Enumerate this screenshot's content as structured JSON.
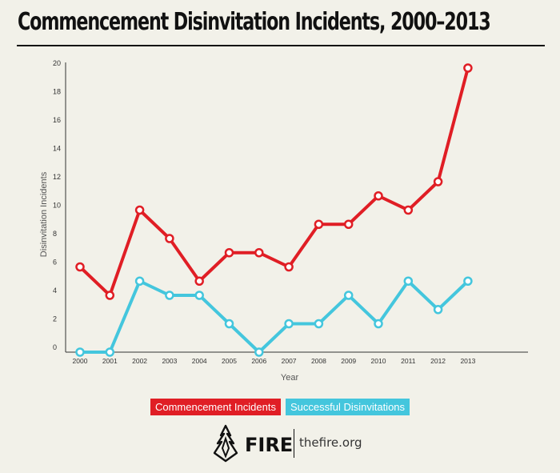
{
  "colors": {
    "commencement": "#e01e25",
    "successful": "#44c6dd",
    "axis": "#333333",
    "background": "#f2f1e9"
  },
  "chart_data": {
    "type": "line",
    "title": "Commencement Disinvitation Incidents, 2000–2013",
    "xlabel": "Year",
    "ylabel": "Disinvitation Incidents",
    "categories": [
      "2000",
      "2001",
      "2002",
      "2003",
      "2004",
      "2005",
      "2006",
      "2007",
      "2008",
      "2009",
      "2010",
      "2011",
      "2012",
      "2013"
    ],
    "yticks": [
      0,
      2,
      4,
      6,
      8,
      10,
      12,
      14,
      16,
      18,
      20
    ],
    "ylim": [
      0,
      20
    ],
    "series": [
      {
        "name": "Commencement Incidents",
        "values": [
          6,
          4,
          10,
          8,
          5,
          7,
          7,
          6,
          9,
          9,
          11,
          10,
          12,
          20
        ]
      },
      {
        "name": "Successful Disinvitations",
        "values": [
          0,
          0,
          5,
          4,
          4,
          2,
          0,
          2,
          2,
          4,
          2,
          5,
          3,
          5
        ]
      }
    ],
    "legend_position": "bottom-center"
  },
  "branding": {
    "logo_text": "FIRE",
    "website": "thefire.org",
    "logo_icon": "flame-icon"
  }
}
